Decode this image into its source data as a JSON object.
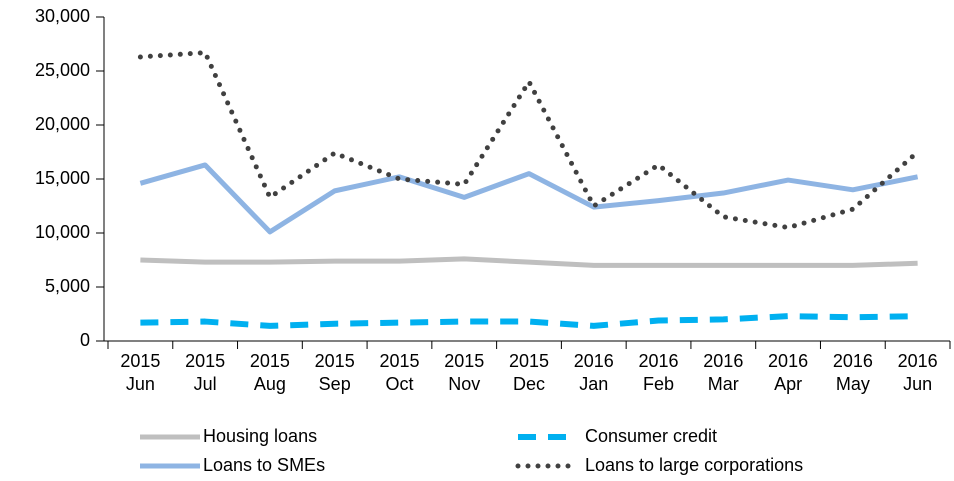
{
  "chart_data": {
    "type": "line",
    "categories": [
      [
        "2015",
        "Jun"
      ],
      [
        "2015",
        "Jul"
      ],
      [
        "2015",
        "Aug"
      ],
      [
        "2015",
        "Sep"
      ],
      [
        "2015",
        "Oct"
      ],
      [
        "2015",
        "Nov"
      ],
      [
        "2015",
        "Dec"
      ],
      [
        "2016",
        "Jan"
      ],
      [
        "2016",
        "Feb"
      ],
      [
        "2016",
        "Mar"
      ],
      [
        "2016",
        "Apr"
      ],
      [
        "2016",
        "May"
      ],
      [
        "2016",
        "Jun"
      ]
    ],
    "series": [
      {
        "name": "Housing loans",
        "color": "#bfbfbf",
        "style": "solid",
        "values": [
          7500,
          7300,
          7300,
          7400,
          7400,
          7600,
          7300,
          7000,
          7000,
          7000,
          7000,
          7000,
          7200
        ]
      },
      {
        "name": "Consumer credit",
        "color": "#00b0f0",
        "style": "dashed",
        "values": [
          1700,
          1800,
          1400,
          1600,
          1700,
          1800,
          1800,
          1400,
          1900,
          2000,
          2300,
          2200,
          2300
        ]
      },
      {
        "name": "Loans to SMEs",
        "color": "#8eb4e3",
        "style": "solid",
        "values": [
          14600,
          16300,
          10100,
          13900,
          15200,
          13300,
          15500,
          12400,
          13000,
          13700,
          14900,
          14000,
          15200
        ]
      },
      {
        "name": "Loans to large corporations",
        "color": "#404040",
        "style": "dotted",
        "values": [
          26300,
          26700,
          13300,
          17400,
          15000,
          14500,
          24000,
          12500,
          16300,
          11500,
          10500,
          12200,
          17500
        ]
      }
    ],
    "ylim": [
      0,
      30000
    ],
    "yticks": [
      0,
      {
        "value": 5000,
        "label": "5,000"
      },
      {
        "value": 10000,
        "label": "10,000"
      },
      {
        "value": 15000,
        "label": "15,000"
      },
      {
        "value": 20000,
        "label": "20,000"
      },
      {
        "value": 25000,
        "label": "25,000"
      },
      {
        "value": 30000,
        "label": "30,000"
      }
    ],
    "legend": "bottom"
  }
}
